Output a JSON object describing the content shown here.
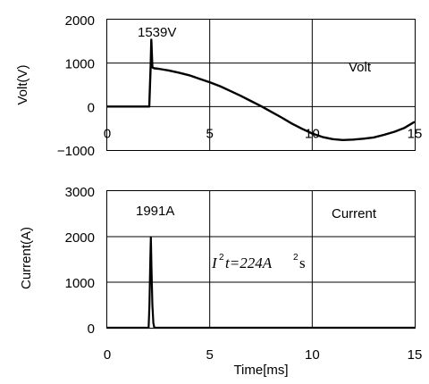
{
  "chart_data": [
    {
      "type": "line",
      "ylabel": "Volt(V)",
      "xlabel": "",
      "xlim": [
        0,
        15
      ],
      "ylim": [
        -1000,
        2000
      ],
      "xticks": [
        "0",
        "5",
        "10",
        "15"
      ],
      "yticks": [
        "2000",
        "1000",
        "0",
        "−1000"
      ],
      "grid": true,
      "annotations": {
        "peak": "1539V",
        "legend": "Volt"
      },
      "series": [
        {
          "x": [
            0,
            2.05,
            2.12,
            2.15,
            2.2,
            2.3,
            2.5,
            3.0,
            3.5,
            4.0,
            4.5,
            5.0,
            5.5,
            6.0,
            6.5,
            7.0,
            7.5,
            8.0,
            8.5,
            9.0,
            9.5,
            10.0,
            10.5,
            11.0,
            11.5,
            12.0,
            12.5,
            13.0,
            13.5,
            14.0,
            14.5,
            15.0
          ],
          "values": [
            0,
            0,
            950,
            1539,
            900,
            880,
            870,
            830,
            780,
            720,
            640,
            560,
            470,
            360,
            250,
            130,
            10,
            -120,
            -250,
            -390,
            -510,
            -620,
            -700,
            -750,
            -770,
            -760,
            -740,
            -710,
            -650,
            -580,
            -490,
            -350
          ]
        }
      ]
    },
    {
      "type": "line",
      "ylabel": "Current(A)",
      "xlabel": "Time[ms]",
      "xlim": [
        0,
        15
      ],
      "ylim": [
        0,
        3000
      ],
      "xticks": [
        "0",
        "5",
        "10",
        "15"
      ],
      "yticks": [
        "3000",
        "2000",
        "1000",
        "0"
      ],
      "grid": true,
      "annotations": {
        "peak": "1991A",
        "legend": "Current",
        "i2t": "t=224A",
        "i2t_tail": "s"
      },
      "series": [
        {
          "x": [
            0,
            2.02,
            2.06,
            2.1,
            2.13,
            2.16,
            2.2,
            2.25,
            2.3,
            15.0
          ],
          "values": [
            0,
            0,
            500,
            1500,
            1991,
            1300,
            500,
            100,
            0,
            0
          ]
        }
      ]
    }
  ]
}
